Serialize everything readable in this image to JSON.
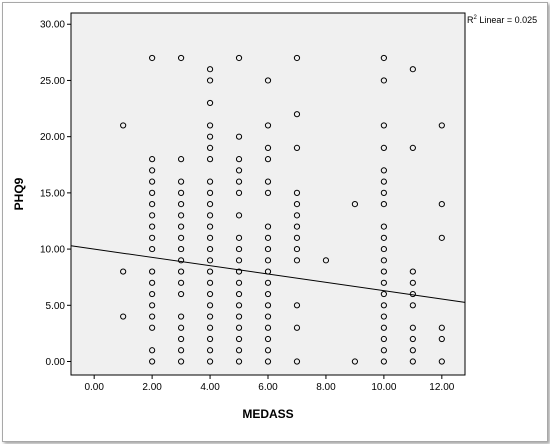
{
  "chart_data": {
    "type": "scatter",
    "title": "",
    "xlabel": "MEDASS",
    "ylabel": "PHQ9",
    "xlim": [
      -0.8,
      12.8
    ],
    "ylim": [
      -1.2,
      31.0
    ],
    "x_ticks": [
      0,
      2,
      4,
      6,
      8,
      10,
      12
    ],
    "x_tick_labels": [
      "0.00",
      "2.00",
      "4.00",
      "6.00",
      "8.00",
      "10.00",
      "12.00"
    ],
    "y_ticks": [
      0,
      5,
      10,
      15,
      20,
      25,
      30
    ],
    "y_tick_labels": [
      "0.00",
      "5.00",
      "10.00",
      "15.00",
      "20.00",
      "25.00",
      "30.00"
    ],
    "grid": false,
    "plot_background": "#f0f0f0",
    "marker_color": "#000000",
    "fit_line": {
      "type": "linear",
      "r2_prefix": "R",
      "r2_sup": "2",
      "r2_text": " Linear = 0.025",
      "intercept": 10.0,
      "slope": -0.37
    },
    "points": {
      "1": [
        21,
        8,
        4
      ],
      "2": [
        27,
        18,
        17,
        16,
        15,
        14,
        13,
        12,
        11,
        10,
        8,
        7,
        6,
        5,
        4,
        3,
        1,
        0
      ],
      "3": [
        27,
        18,
        16,
        15,
        14,
        13,
        12,
        11,
        10,
        9,
        8,
        7,
        6,
        4,
        3,
        2,
        1,
        0
      ],
      "4": [
        26,
        25,
        23,
        21,
        20,
        19,
        18,
        16,
        15,
        14,
        13,
        12,
        11,
        10,
        9,
        8,
        7,
        6,
        5,
        4,
        3,
        2,
        1,
        0
      ],
      "5": [
        27,
        20,
        18,
        17,
        16,
        15,
        13,
        11,
        10,
        9,
        8,
        7,
        6,
        5,
        4,
        3,
        2,
        1,
        0
      ],
      "6": [
        25,
        21,
        19,
        18,
        16,
        15,
        12,
        11,
        10,
        9,
        8,
        7,
        6,
        5,
        4,
        3,
        2,
        1,
        0
      ],
      "7": [
        27,
        22,
        19,
        15,
        14,
        13,
        12,
        11,
        10,
        9,
        5,
        3,
        0
      ],
      "8": [
        9
      ],
      "9": [
        14,
        0
      ],
      "10": [
        27,
        25,
        21,
        19,
        17,
        16,
        15,
        14,
        12,
        11,
        10,
        9,
        8,
        7,
        6,
        5,
        4,
        3,
        2,
        1,
        0
      ],
      "11": [
        26,
        19,
        8,
        7,
        6,
        5,
        3,
        2,
        1,
        0
      ],
      "12": [
        21,
        14,
        11,
        3,
        2,
        0
      ]
    }
  }
}
